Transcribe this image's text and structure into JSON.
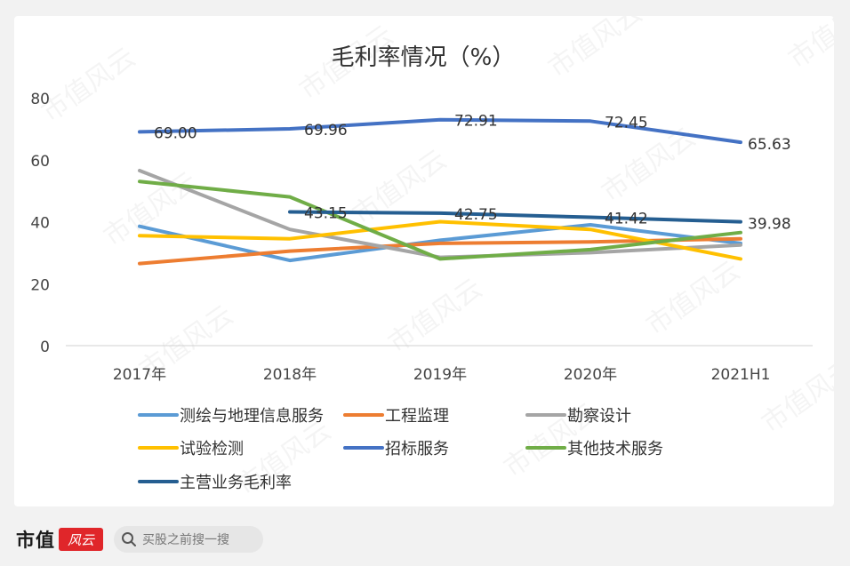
{
  "footer": {
    "brand_text": "市值",
    "brand_seal_text": "风云",
    "search_placeholder": "买股之前搜一搜",
    "search_icon": "search-icon"
  },
  "watermark_text": "市值风云",
  "chart_data": {
    "type": "line",
    "title": "毛利率情况（%）",
    "categories": [
      "2017年",
      "2018年",
      "2019年",
      "2020年",
      "2021H1"
    ],
    "ylim": [
      0,
      80
    ],
    "yticks": [
      0,
      20,
      40,
      60,
      80
    ],
    "grid": false,
    "legend_position": "bottom",
    "series": [
      {
        "name": "测绘与地理信息服务",
        "color": "#5b9bd5",
        "values": [
          38.5,
          27.5,
          34,
          39,
          33
        ],
        "labels": null
      },
      {
        "name": "工程监理",
        "color": "#ed7d31",
        "values": [
          26.5,
          30.5,
          33,
          33.5,
          34.5
        ],
        "labels": null
      },
      {
        "name": "勘察设计",
        "color": "#a5a5a5",
        "values": [
          56.5,
          37.5,
          28.5,
          30,
          32.5
        ],
        "labels": null
      },
      {
        "name": "试验检测",
        "color": "#ffc000",
        "values": [
          35.5,
          34.5,
          40,
          37.5,
          28
        ],
        "labels": null
      },
      {
        "name": "招标服务",
        "color": "#4472c4",
        "values": [
          69.0,
          69.96,
          72.91,
          72.45,
          65.63
        ],
        "labels": [
          "69.00",
          "69.96",
          "72.91",
          "72.45",
          "65.63"
        ]
      },
      {
        "name": "其他技术服务",
        "color": "#70ad47",
        "values": [
          53,
          48,
          28,
          31,
          36.5
        ],
        "labels": null
      },
      {
        "name": "主营业务毛利率",
        "color": "#255e91",
        "values": [
          null,
          43.15,
          42.75,
          41.42,
          39.98
        ],
        "labels": [
          null,
          "43.15",
          "42.75",
          "41.42",
          "39.98"
        ]
      }
    ]
  }
}
